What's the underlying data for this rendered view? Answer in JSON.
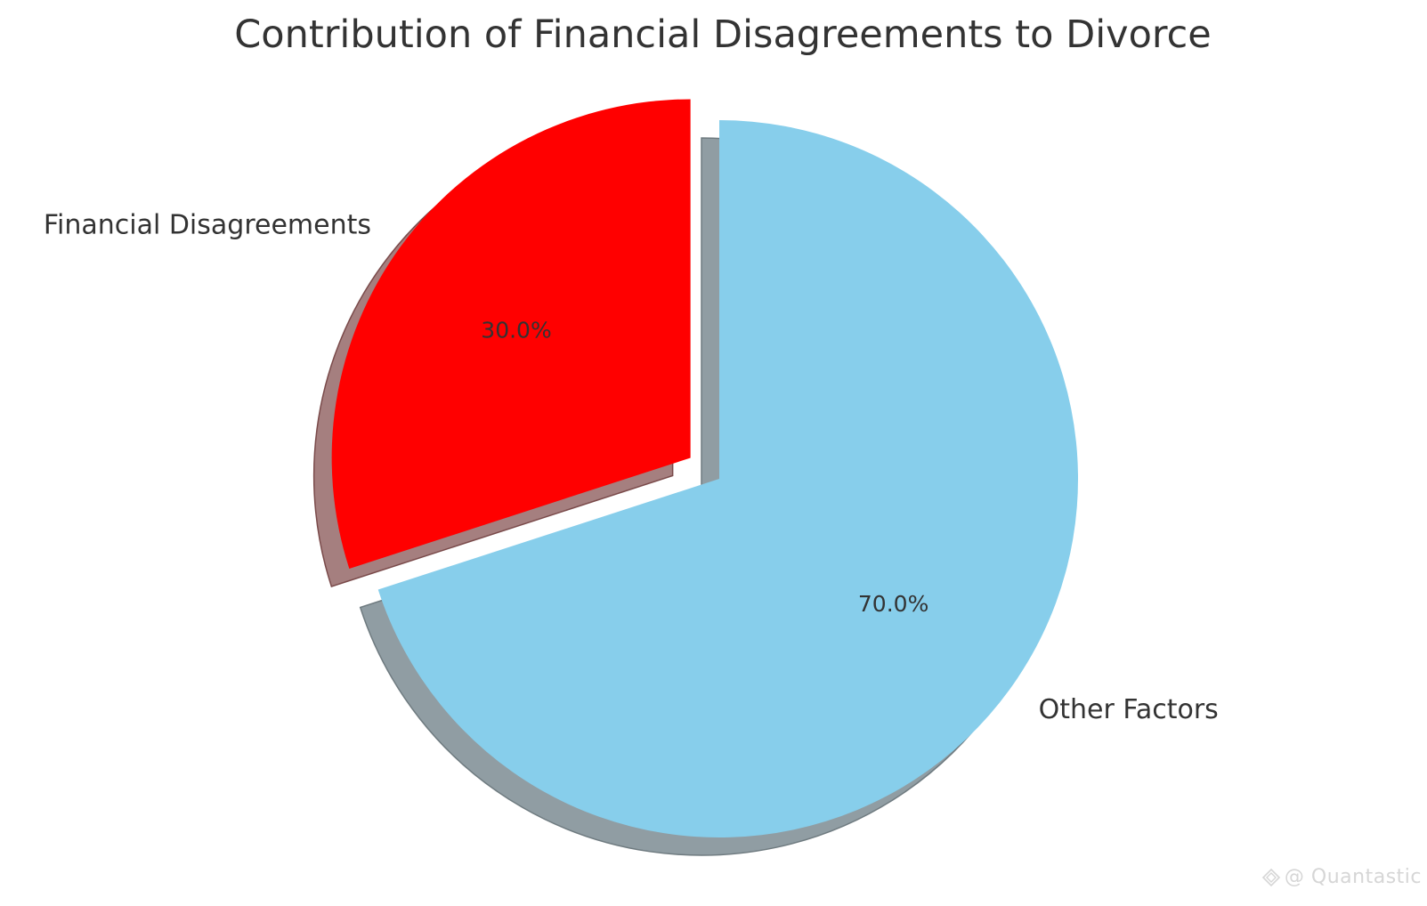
{
  "chart_data": {
    "type": "pie",
    "title": "Contribution of Financial Disagreements to Divorce",
    "slices": [
      {
        "label": "Financial Disagreements",
        "value": 30,
        "pct_label": "30.0%",
        "color": "#ff0000",
        "exploded": true
      },
      {
        "label": "Other Factors",
        "value": 70,
        "pct_label": "70.0%",
        "color": "#87ceeb",
        "exploded": false
      }
    ],
    "start_angle_deg": 90,
    "direction": "counterclockwise",
    "shadow": true,
    "legend": "none"
  },
  "watermark": {
    "text": "@ Quantastic"
  }
}
